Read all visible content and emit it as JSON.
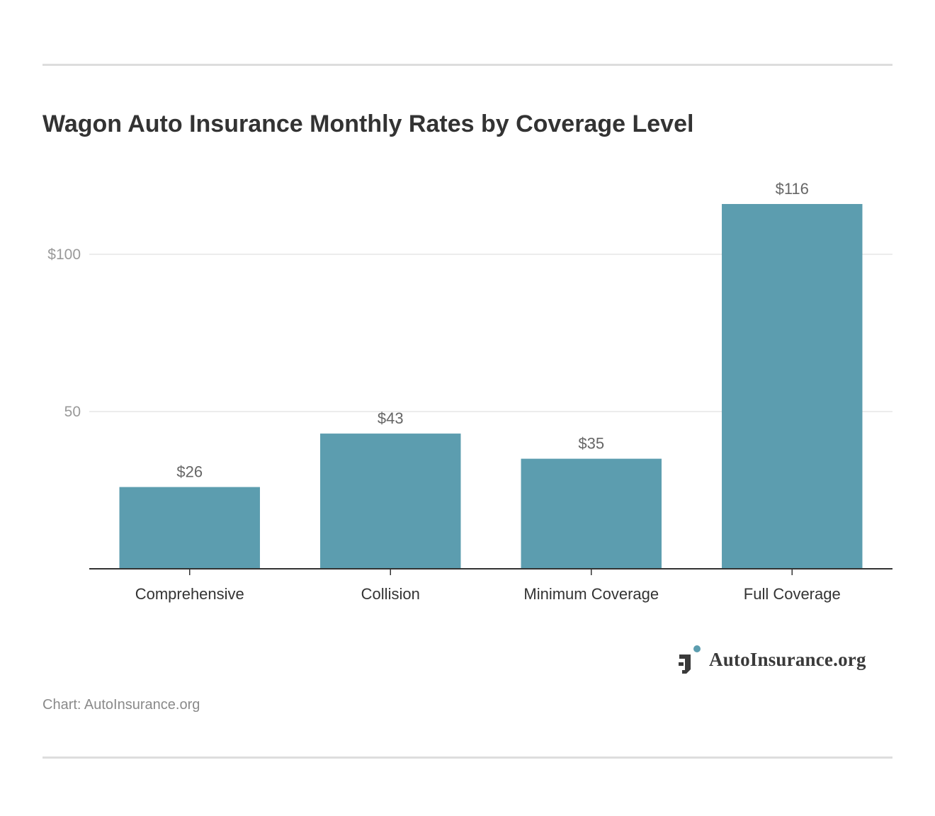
{
  "header": {
    "title": "Wagon Auto Insurance Monthly Rates by Coverage Level"
  },
  "chart_data": {
    "type": "bar",
    "title": "Wagon Auto Insurance Monthly Rates by Coverage Level",
    "categories": [
      "Comprehensive",
      "Collision",
      "Minimum Coverage",
      "Full Coverage"
    ],
    "values": [
      26,
      43,
      35,
      116
    ],
    "data_labels": [
      "$26",
      "$43",
      "$35",
      "$116"
    ],
    "y_ticks": [
      {
        "value": 50,
        "label": "50"
      },
      {
        "value": 100,
        "label": "$100"
      }
    ],
    "ylim": [
      0,
      116
    ],
    "xlabel": "",
    "ylabel": "",
    "grid": true,
    "legend": "none",
    "bar_color": "#5c9daf",
    "grid_color": "#e6e6e6",
    "axis_color": "#333333"
  },
  "logo": {
    "text": "AutoInsurance.org",
    "mark_color": "#3a3a3a",
    "dot_color": "#5c9daf"
  },
  "footer": {
    "credit": "Chart: AutoInsurance.org"
  }
}
